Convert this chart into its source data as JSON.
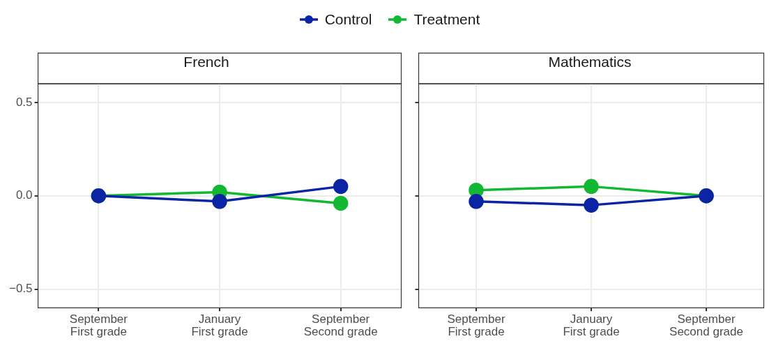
{
  "chart_data": [
    {
      "type": "line",
      "title": "French",
      "categories": [
        "September\nFirst grade",
        "January\nFirst grade",
        "September\nSecond grade"
      ],
      "series": [
        {
          "name": "Control",
          "color": "#0b24a3",
          "values": [
            0.0,
            -0.03,
            0.05
          ]
        },
        {
          "name": "Treatment",
          "color": "#12b832",
          "values": [
            0.0,
            0.02,
            -0.04
          ]
        }
      ],
      "ylim": [
        -0.6,
        0.6
      ],
      "yticks": [
        {
          "value": -0.5,
          "label": "−0.5"
        },
        {
          "value": 0,
          "label": "0.0"
        },
        {
          "value": 0.5,
          "label": "0.5"
        }
      ],
      "grid": true,
      "marker": "circle",
      "legend": "top"
    },
    {
      "type": "line",
      "title": "Mathematics",
      "categories": [
        "September\nFirst grade",
        "January\nFirst grade",
        "September\nSecond grade"
      ],
      "series": [
        {
          "color": "#0b24a3",
          "values": [
            -0.03,
            -0.05,
            0.0
          ]
        },
        {
          "color": "#12b832",
          "values": [
            0.03,
            0.05,
            0.0
          ]
        }
      ],
      "ylim": [
        -0.6,
        0.6
      ],
      "yticks": [
        {
          "value": -0.5,
          "label": null
        },
        {
          "value": 0,
          "label": null
        },
        {
          "value": 0.5,
          "label": null
        }
      ],
      "grid": true,
      "marker": "circle",
      "tick_labels": "x"
    }
  ]
}
